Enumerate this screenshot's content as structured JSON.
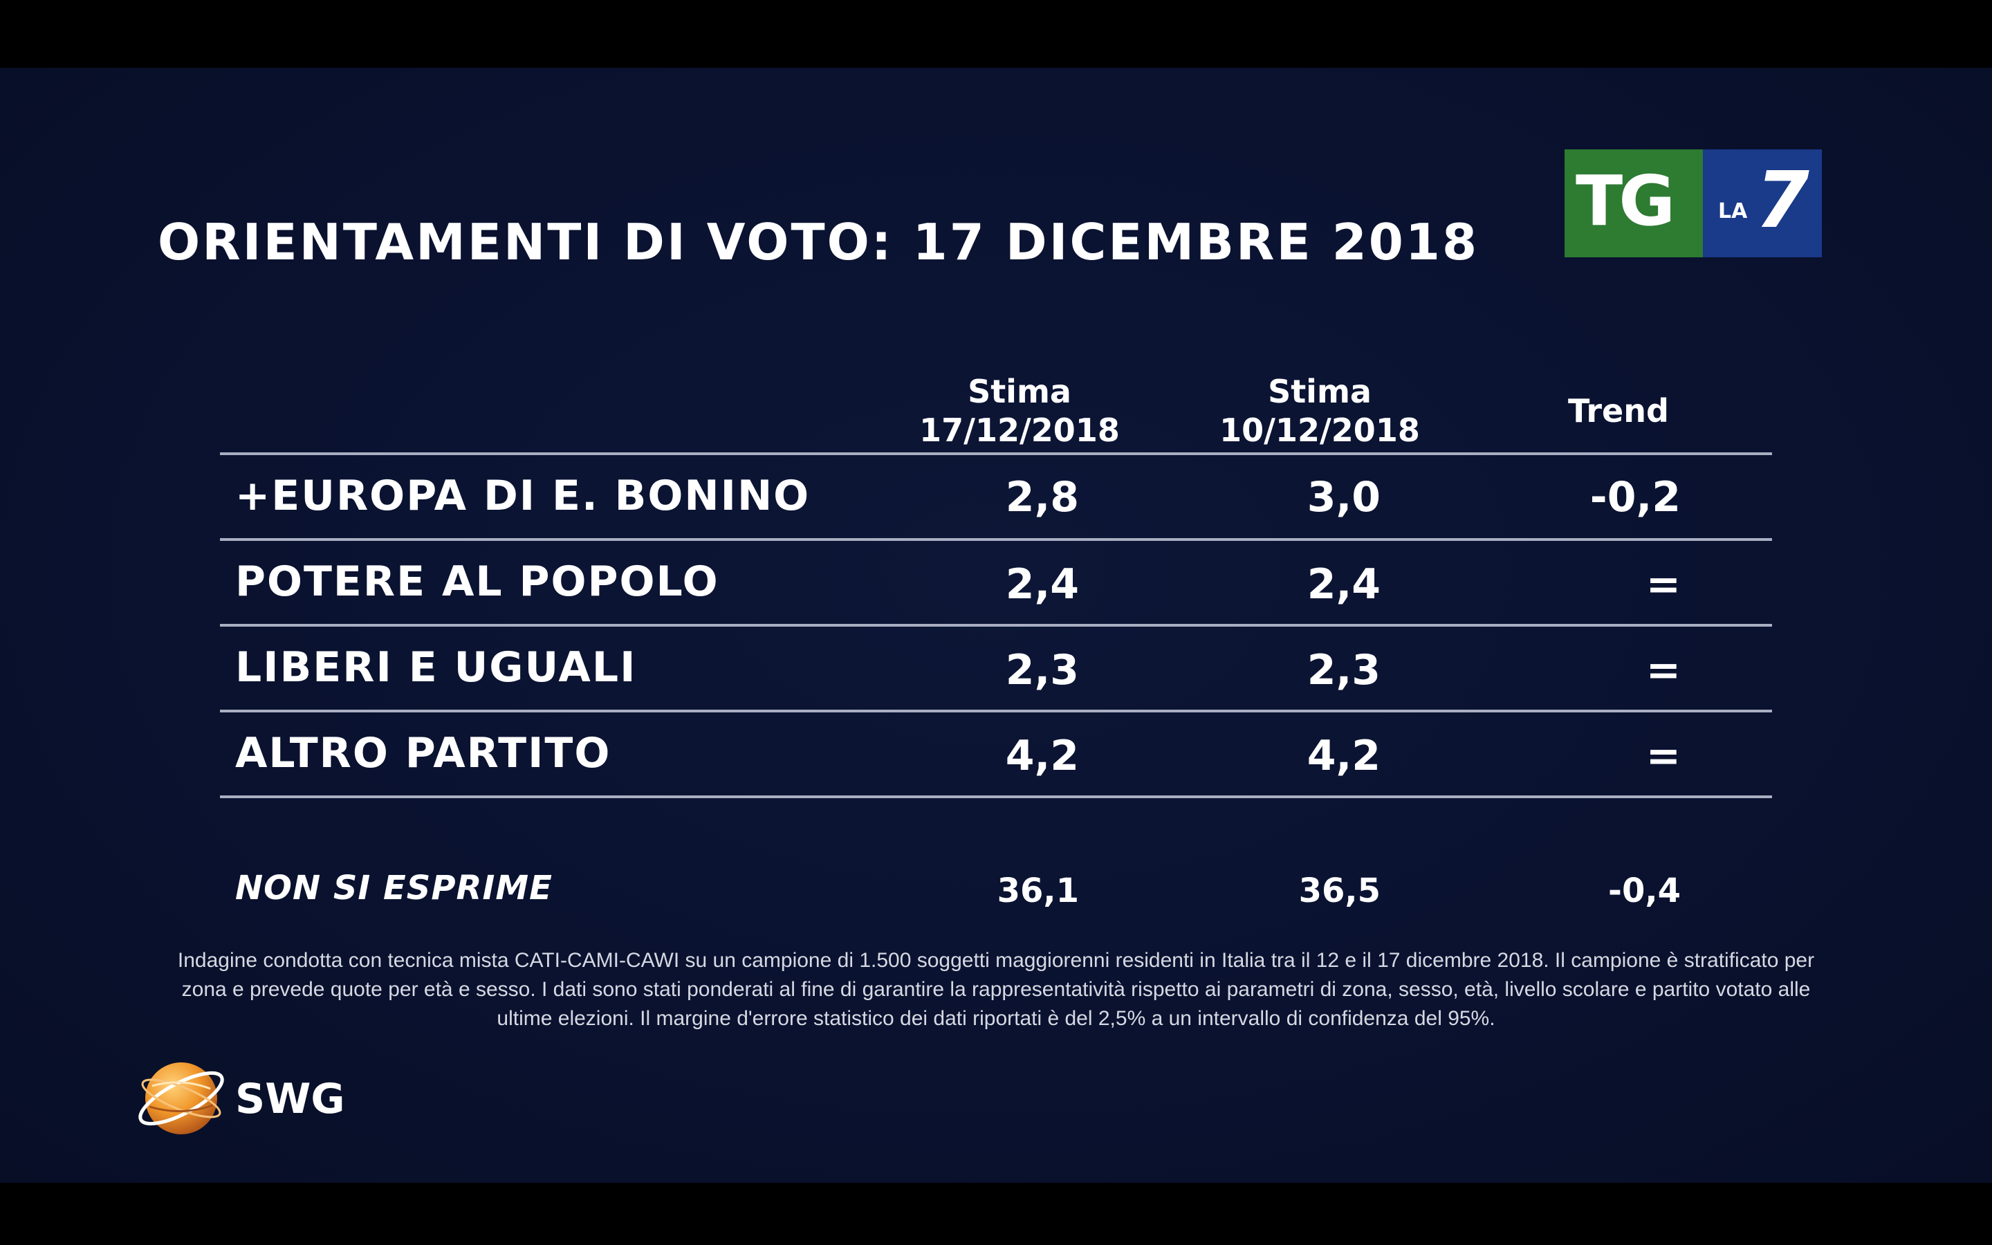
{
  "title": "ORIENTAMENTI DI VOTO: 17 DICEMBRE 2018",
  "logo": {
    "tg": "TG",
    "la": "LA",
    "seven": "7"
  },
  "chart_data": {
    "type": "table",
    "title": "ORIENTAMENTI DI VOTO: 17 DICEMBRE 2018",
    "columns": [
      {
        "line1": "Stima",
        "line2": "17/12/2018"
      },
      {
        "line1": "Stima",
        "line2": "10/12/2018"
      },
      {
        "line1": "Trend",
        "line2": ""
      }
    ],
    "rows": [
      {
        "label": "+EUROPA DI E. BONINO",
        "values": [
          "2,8",
          "3,0",
          "-0,2"
        ]
      },
      {
        "label": "POTERE AL POPOLO",
        "values": [
          "2,4",
          "2,4",
          "="
        ]
      },
      {
        "label": "LIBERI E UGUALI",
        "values": [
          "2,3",
          "2,3",
          "="
        ]
      },
      {
        "label": "ALTRO PARTITO",
        "values": [
          "4,2",
          "4,2",
          "="
        ]
      }
    ],
    "non_si_esprime": {
      "label": "NON SI ESPRIME",
      "values": [
        "36,1",
        "36,5",
        "-0,4"
      ]
    }
  },
  "note": "Indagine condotta con tecnica mista CATI-CAMI-CAWI su un campione di 1.500 soggetti maggiorenni residenti in Italia tra il 12 e il 17 dicembre 2018. Il campione è stratificato per zona e prevede quote per età e sesso. I dati sono stati ponderati al fine di garantire la rappresentatività rispetto ai parametri di zona, sesso, età, livello scolare e partito votato alle ultime elezioni. Il margine d'errore statistico dei dati riportati è del 2,5% a un intervallo di confidenza del 95%.",
  "source_logo": {
    "name": "SWG",
    "icon": "globe-icon"
  },
  "colors": {
    "background": "#0a1230",
    "tg_green": "#2e7b32",
    "la7_blue": "#1a3a8a",
    "swg_orange": "#f0962a"
  }
}
